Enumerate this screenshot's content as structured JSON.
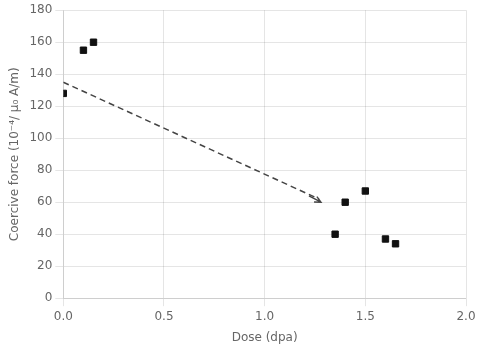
{
  "chart_data": {
    "type": "scatter",
    "xlabel": "Dose (dpa)",
    "ylabel": "Coercive force (10⁻⁴/ μ₀ A/m)",
    "xlim": [
      0,
      2
    ],
    "ylim": [
      0,
      180
    ],
    "xticks": [
      {
        "value": 0,
        "label": "0.0"
      },
      {
        "value": 0.5,
        "label": "0.5"
      },
      {
        "value": 1,
        "label": "1.0"
      },
      {
        "value": 1.5,
        "label": "1.5"
      },
      {
        "value": 2,
        "label": "2.0"
      }
    ],
    "yticks": [
      0,
      20,
      40,
      60,
      80,
      100,
      120,
      140,
      160,
      180
    ],
    "grid": true,
    "series": [
      {
        "type": "scatter",
        "marker": "square",
        "color": "#111111",
        "x": [
          0.0,
          0.1,
          0.15,
          1.35,
          1.4,
          1.6,
          1.65,
          1.5
        ],
        "values": [
          128,
          155,
          160,
          40,
          60,
          37,
          34,
          67
        ]
      },
      {
        "type": "line",
        "line_style": "dashed",
        "color": "#444444",
        "x": [
          0.0,
          1.27
        ],
        "values": [
          135,
          62
        ]
      },
      {
        "type": "arrow",
        "color": "#444444",
        "x": [
          1.22,
          1.28
        ],
        "values": [
          64,
          60
        ]
      }
    ]
  }
}
